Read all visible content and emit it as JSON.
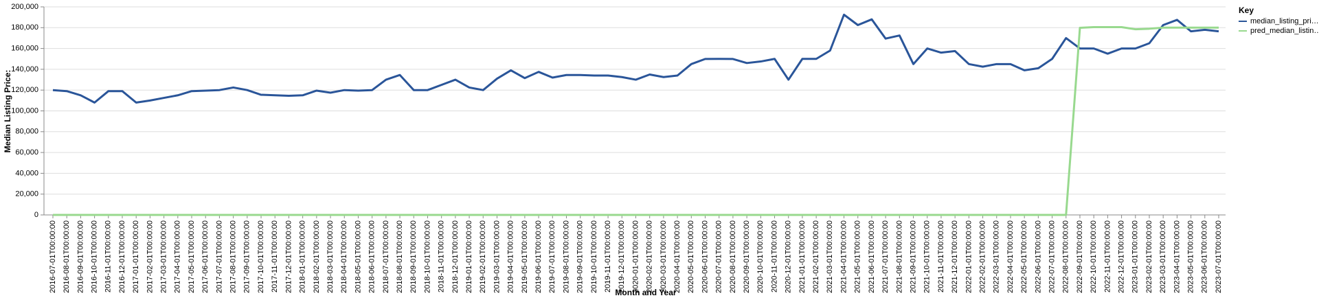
{
  "chart_data": {
    "type": "line",
    "x_label": "Month and Year",
    "y_label": "Median Listing Price:",
    "legend_title": "Key",
    "legend_position": "right",
    "grid": true,
    "categories": [
      "2016-07-01T00:00:00",
      "2016-08-01T00:00:00",
      "2016-09-01T00:00:00",
      "2016-10-01T00:00:00",
      "2016-11-01T00:00:00",
      "2016-12-01T00:00:00",
      "2017-01-01T00:00:00",
      "2017-02-01T00:00:00",
      "2017-03-01T00:00:00",
      "2017-04-01T00:00:00",
      "2017-05-01T00:00:00",
      "2017-06-01T00:00:00",
      "2017-07-01T00:00:00",
      "2017-08-01T00:00:00",
      "2017-09-01T00:00:00",
      "2017-10-01T00:00:00",
      "2017-11-01T00:00:00",
      "2017-12-01T00:00:00",
      "2018-01-01T00:00:00",
      "2018-02-01T00:00:00",
      "2018-03-01T00:00:00",
      "2018-04-01T00:00:00",
      "2018-05-01T00:00:00",
      "2018-06-01T00:00:00",
      "2018-07-01T00:00:00",
      "2018-08-01T00:00:00",
      "2018-09-01T00:00:00",
      "2018-10-01T00:00:00",
      "2018-11-01T00:00:00",
      "2018-12-01T00:00:00",
      "2019-01-01T00:00:00",
      "2019-02-01T00:00:00",
      "2019-03-01T00:00:00",
      "2019-04-01T00:00:00",
      "2019-05-01T00:00:00",
      "2019-06-01T00:00:00",
      "2019-07-01T00:00:00",
      "2019-08-01T00:00:00",
      "2019-09-01T00:00:00",
      "2019-10-01T00:00:00",
      "2019-11-01T00:00:00",
      "2019-12-01T00:00:00",
      "2020-01-01T00:00:00",
      "2020-02-01T00:00:00",
      "2020-03-01T00:00:00",
      "2020-04-01T00:00:00",
      "2020-05-01T00:00:00",
      "2020-06-01T00:00:00",
      "2020-07-01T00:00:00",
      "2020-08-01T00:00:00",
      "2020-09-01T00:00:00",
      "2020-10-01T00:00:00",
      "2020-11-01T00:00:00",
      "2020-12-01T00:00:00",
      "2021-01-01T00:00:00",
      "2021-02-01T00:00:00",
      "2021-03-01T00:00:00",
      "2021-04-01T00:00:00",
      "2021-05-01T00:00:00",
      "2021-06-01T00:00:00",
      "2021-07-01T00:00:00",
      "2021-08-01T00:00:00",
      "2021-09-01T00:00:00",
      "2021-10-01T00:00:00",
      "2021-11-01T00:00:00",
      "2021-12-01T00:00:00",
      "2022-01-01T00:00:00",
      "2022-02-01T00:00:00",
      "2022-03-01T00:00:00",
      "2022-04-01T00:00:00",
      "2022-05-01T00:00:00",
      "2022-06-01T00:00:00",
      "2022-07-01T00:00:00",
      "2022-08-01T00:00:00",
      "2022-09-01T00:00:00",
      "2022-10-01T00:00:00",
      "2022-11-01T00:00:00",
      "2022-12-01T00:00:00",
      "2023-01-01T00:00:00",
      "2023-02-01T00:00:00",
      "2023-03-01T00:00:00",
      "2023-04-01T00:00:00",
      "2023-05-01T00:00:00",
      "2023-06-01T00:00:00",
      "2023-07-01T00:00:00"
    ],
    "series": [
      {
        "name": "median_listing_pri…",
        "color": "#2a5599",
        "values": [
          120000,
          119000,
          115000,
          108000,
          119000,
          119000,
          108000,
          110000,
          112500,
          115000,
          119000,
          119500,
          120000,
          122500,
          120000,
          115500,
          115000,
          114500,
          115000,
          119500,
          117500,
          120000,
          119500,
          120000,
          130000,
          134500,
          120000,
          120000,
          125000,
          130000,
          122500,
          120000,
          131000,
          139000,
          131500,
          137500,
          132000,
          134500,
          134500,
          134000,
          134000,
          132500,
          130000,
          135000,
          132500,
          134000,
          145000,
          149900,
          150000,
          149900,
          146000,
          147500,
          150000,
          130000,
          150000,
          150000,
          158000,
          192500,
          182500,
          188000,
          169500,
          172500,
          145000,
          160000,
          156000,
          157500,
          145000,
          142500,
          145000,
          145000,
          139000,
          141000,
          150000,
          170000,
          160000,
          160000,
          155000,
          160000,
          160000,
          165000,
          182500,
          187500,
          176500,
          178000,
          176500
        ]
      },
      {
        "name": "pred_median_listin…",
        "color": "#98d98e",
        "values": [
          0,
          0,
          0,
          0,
          0,
          0,
          0,
          0,
          0,
          0,
          0,
          0,
          0,
          0,
          0,
          0,
          0,
          0,
          0,
          0,
          0,
          0,
          0,
          0,
          0,
          0,
          0,
          0,
          0,
          0,
          0,
          0,
          0,
          0,
          0,
          0,
          0,
          0,
          0,
          0,
          0,
          0,
          0,
          0,
          0,
          0,
          0,
          0,
          0,
          0,
          0,
          0,
          0,
          0,
          0,
          0,
          0,
          0,
          0,
          0,
          0,
          0,
          0,
          0,
          0,
          0,
          0,
          0,
          0,
          0,
          0,
          0,
          0,
          0,
          179900,
          180500,
          180500,
          180500,
          178500,
          179000,
          180000,
          180000,
          180000,
          180000,
          180000
        ]
      }
    ],
    "ylim": [
      0,
      200000
    ],
    "yticks": [
      0,
      {
        "value": 20000,
        "label": "20,000"
      },
      {
        "value": 40000,
        "label": "40,000"
      },
      {
        "value": 60000,
        "label": "60,000"
      },
      {
        "value": 80000,
        "label": "80,000"
      },
      {
        "value": 100000,
        "label": "100,000"
      },
      {
        "value": 120000,
        "label": "120,000"
      },
      {
        "value": 140000,
        "label": "140,000"
      },
      {
        "value": 160000,
        "label": "160,000"
      },
      {
        "value": 180000,
        "label": "180,000"
      },
      {
        "value": 200000,
        "label": "200,000"
      }
    ]
  }
}
